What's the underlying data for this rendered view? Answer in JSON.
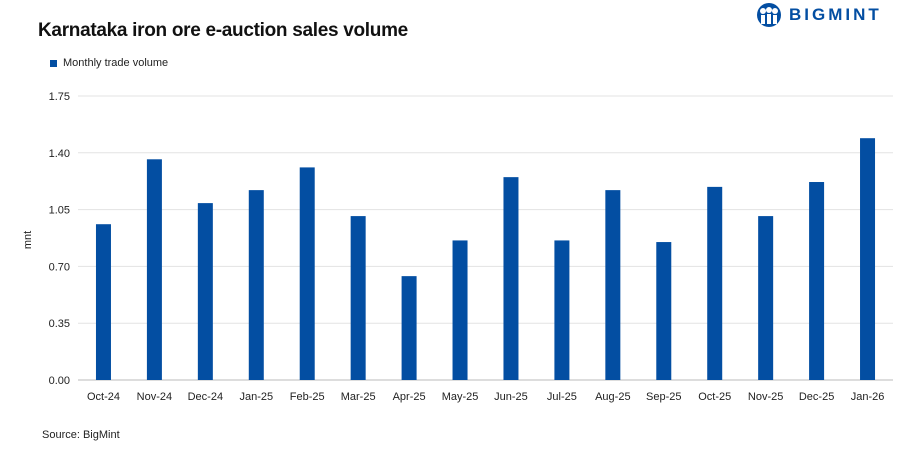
{
  "logo_text": "BIGMINT",
  "source": "Source: BigMint",
  "chart_data": {
    "type": "bar",
    "title": "Karnataka iron ore e-auction sales volume",
    "ylabel": "mnt",
    "xlabel": "",
    "ylim": [
      0,
      1.75
    ],
    "yticks": [
      "0.00",
      "0.35",
      "0.70",
      "1.05",
      "1.40",
      "1.75"
    ],
    "grid": true,
    "legend_position": "top-left",
    "color": "#034ea2",
    "categories": [
      "Oct-24",
      "Nov-24",
      "Dec-24",
      "Jan-25",
      "Feb-25",
      "Mar-25",
      "Apr-25",
      "May-25",
      "Jun-25",
      "Jul-25",
      "Aug-25",
      "Sep-25",
      "Oct-25",
      "Nov-25",
      "Dec-25",
      "Jan-26"
    ],
    "series": [
      {
        "name": "Monthly trade volume",
        "values": [
          0.96,
          1.36,
          1.09,
          1.17,
          1.31,
          1.01,
          0.64,
          0.86,
          1.25,
          0.86,
          1.17,
          0.85,
          1.19,
          1.01,
          1.22,
          1.49
        ]
      }
    ]
  }
}
